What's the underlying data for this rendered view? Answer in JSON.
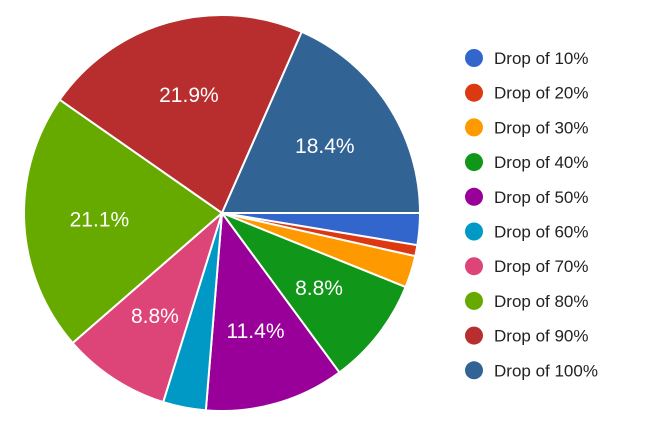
{
  "chart_data": {
    "type": "pie",
    "title": "",
    "legend_position": "right",
    "start": "3 o'clock",
    "direction": "clockwise",
    "slices": [
      {
        "label": "Drop of 10%",
        "value": 2.6,
        "color": "#3366cc",
        "display": ""
      },
      {
        "label": "Drop of 20%",
        "value": 0.9,
        "color": "#dc3912",
        "display": ""
      },
      {
        "label": "Drop of 30%",
        "value": 2.6,
        "color": "#ff9900",
        "display": ""
      },
      {
        "label": "Drop of 40%",
        "value": 8.8,
        "color": "#109618",
        "display": "8.8%"
      },
      {
        "label": "Drop of 50%",
        "value": 11.4,
        "color": "#990099",
        "display": "11.4%"
      },
      {
        "label": "Drop of 60%",
        "value": 3.5,
        "color": "#0099c6",
        "display": ""
      },
      {
        "label": "Drop of 70%",
        "value": 8.8,
        "color": "#dd4477",
        "display": "8.8%"
      },
      {
        "label": "Drop of 80%",
        "value": 21.1,
        "color": "#66aa00",
        "display": "21.1%"
      },
      {
        "label": "Drop of 90%",
        "value": 21.9,
        "color": "#b82e2e",
        "display": "21.9%"
      },
      {
        "label": "Drop of 100%",
        "value": 18.4,
        "color": "#316395",
        "display": "18.4%"
      }
    ]
  }
}
